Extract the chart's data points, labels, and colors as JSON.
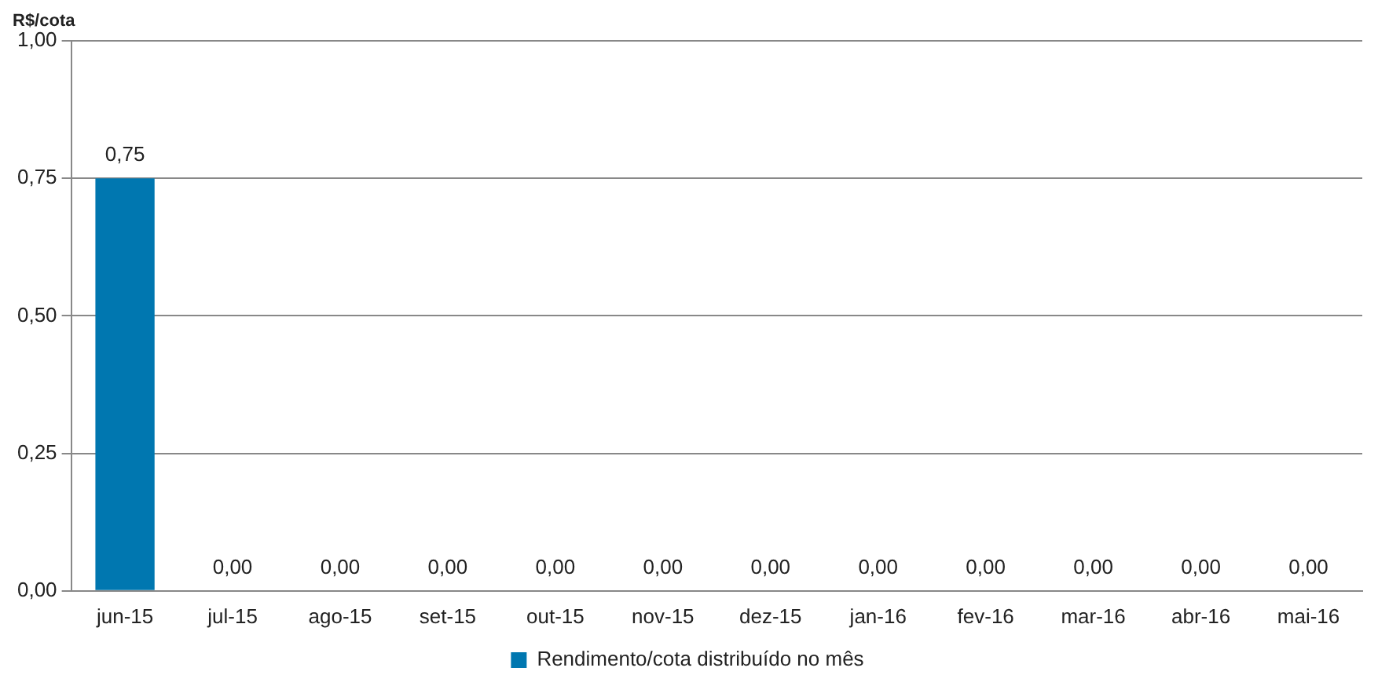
{
  "chart_data": {
    "type": "bar",
    "ylabel": "R$/cota",
    "categories": [
      "jun-15",
      "jul-15",
      "ago-15",
      "set-15",
      "out-15",
      "nov-15",
      "dez-15",
      "jan-16",
      "fev-16",
      "mar-16",
      "abr-16",
      "mai-16"
    ],
    "series": [
      {
        "name": "Rendimento/cota distribuído no mês",
        "color": "#0077b0",
        "values": [
          0.75,
          0,
          0,
          0,
          0,
          0,
          0,
          0,
          0,
          0,
          0,
          0
        ],
        "value_labels": [
          "0,75",
          "0,00",
          "0,00",
          "0,00",
          "0,00",
          "0,00",
          "0,00",
          "0,00",
          "0,00",
          "0,00",
          "0,00",
          "0,00"
        ]
      }
    ],
    "ylim": [
      0,
      1
    ],
    "yticks": [
      {
        "value": 0,
        "label": "0,00"
      },
      {
        "value": 0.25,
        "label": "0,25"
      },
      {
        "value": 0.5,
        "label": "0,50"
      },
      {
        "value": 0.75,
        "label": "0,75"
      },
      {
        "value": 1,
        "label": "1,00"
      }
    ],
    "grid": "y",
    "legend": "bottom"
  }
}
